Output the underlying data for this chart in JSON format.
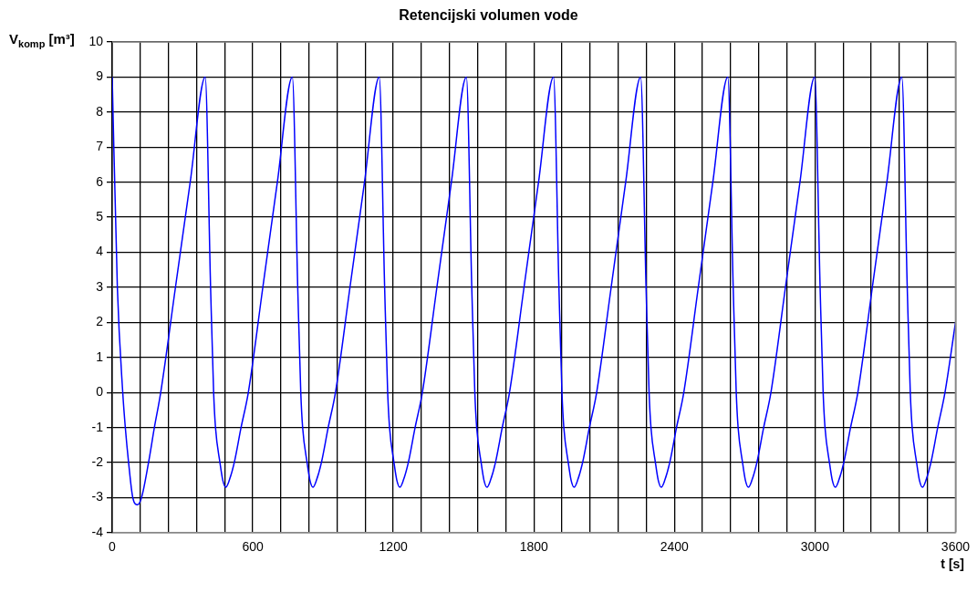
{
  "chart_data": {
    "type": "line",
    "title": "Retencijski volumen vode",
    "xlabel": "t [s]",
    "ylabel": "V$_{komp}$ [m³]",
    "xlim": [
      0,
      3600
    ],
    "xticks": [
      0,
      {
        "value": 120,
        "label": null
      },
      {
        "value": 240,
        "label": null
      },
      {
        "value": 360,
        "label": null
      },
      {
        "value": 480,
        "label": null
      },
      600,
      {
        "value": 720,
        "label": null
      },
      {
        "value": 840,
        "label": null
      },
      {
        "value": 960,
        "label": null
      },
      {
        "value": 1080,
        "label": null
      },
      1200,
      {
        "value": 1320,
        "label": null
      },
      {
        "value": 1440,
        "label": null
      },
      {
        "value": 1560,
        "label": null
      },
      {
        "value": 1680,
        "label": null
      },
      1800,
      {
        "value": 1920,
        "label": null
      },
      {
        "value": 2040,
        "label": null
      },
      {
        "value": 2160,
        "label": null
      },
      {
        "value": 2280,
        "label": null
      },
      2400,
      {
        "value": 2520,
        "label": null
      },
      {
        "value": 2640,
        "label": null
      },
      {
        "value": 2760,
        "label": null
      },
      {
        "value": 2880,
        "label": null
      },
      3000,
      {
        "value": 3120,
        "label": null
      },
      {
        "value": 3240,
        "label": null
      },
      {
        "value": 3360,
        "label": null
      },
      {
        "value": 3480,
        "label": null
      },
      3600
    ],
    "ylim": [
      -4,
      10
    ],
    "yticks": [
      -4,
      -3,
      -2,
      -1,
      0,
      1,
      2,
      3,
      4,
      5,
      6,
      7,
      8,
      9,
      10
    ],
    "grid": true,
    "legend": false,
    "marker": "none",
    "line_style": "solid",
    "series": [
      {
        "color": "#0000ff",
        "x": [
          0,
          22,
          45,
          56,
          70,
          88,
          108,
          125,
          155,
          180,
          207,
          270,
          333,
          397,
          420,
          433,
          441,
          460,
          472,
          485,
          500,
          521,
          550,
          581,
          643,
          705,
          769,
          792,
          805,
          813,
          832,
          844,
          857,
          872,
          893,
          922,
          953,
          1015,
          1077,
          1140,
          1163,
          1176,
          1184,
          1203,
          1215,
          1228,
          1243,
          1264,
          1293,
          1324,
          1386,
          1448,
          1512,
          1535,
          1548,
          1556,
          1575,
          1587,
          1600,
          1615,
          1636,
          1665,
          1696,
          1758,
          1820,
          1884,
          1907,
          1920,
          1928,
          1947,
          1959,
          1972,
          1987,
          2008,
          2037,
          2068,
          2130,
          2192,
          2256,
          2279,
          2292,
          2300,
          2319,
          2331,
          2344,
          2359,
          2380,
          2409,
          2440,
          2502,
          2564,
          2628,
          2651,
          2664,
          2672,
          2691,
          2703,
          2716,
          2731,
          2752,
          2781,
          2812,
          2874,
          2936,
          2999,
          3022,
          3035,
          3043,
          3062,
          3074,
          3087,
          3102,
          3123,
          3152,
          3183,
          3245,
          3307,
          3371,
          3394,
          3407,
          3415,
          3434,
          3446,
          3459,
          3474,
          3495,
          3524,
          3555,
          3600
        ],
        "values": [
          9,
          3,
          0,
          -1,
          -2,
          -3,
          -3.2,
          -3,
          -2,
          -1,
          0,
          3,
          6,
          9,
          3,
          0,
          -1,
          -2,
          -2.5,
          -2.7,
          -2.5,
          -2,
          -1,
          0,
          3,
          6,
          9,
          3,
          0,
          -1,
          -2,
          -2.5,
          -2.7,
          -2.5,
          -2,
          -1,
          0,
          3,
          6,
          9,
          3,
          0,
          -1,
          -2,
          -2.5,
          -2.7,
          -2.5,
          -2,
          -1,
          0,
          3,
          6,
          9,
          3,
          0,
          -1,
          -2,
          -2.5,
          -2.7,
          -2.5,
          -2,
          -1,
          0,
          3,
          6,
          9,
          3,
          0,
          -1,
          -2,
          -2.5,
          -2.7,
          -2.5,
          -2,
          -1,
          0,
          3,
          6,
          9,
          3,
          0,
          -1,
          -2,
          -2.5,
          -2.7,
          -2.5,
          -2,
          -1,
          0,
          3,
          6,
          9,
          3,
          0,
          -1,
          -2,
          -2.5,
          -2.7,
          -2.5,
          -2,
          -1,
          0,
          3,
          6,
          9,
          3,
          0,
          -1,
          -2,
          -2.5,
          -2.7,
          -2.5,
          -2,
          -1,
          0,
          3,
          6,
          9,
          3,
          0,
          -1,
          -2,
          -2.5,
          -2.7,
          -2.5,
          -2,
          -1,
          0,
          2
        ]
      }
    ]
  }
}
